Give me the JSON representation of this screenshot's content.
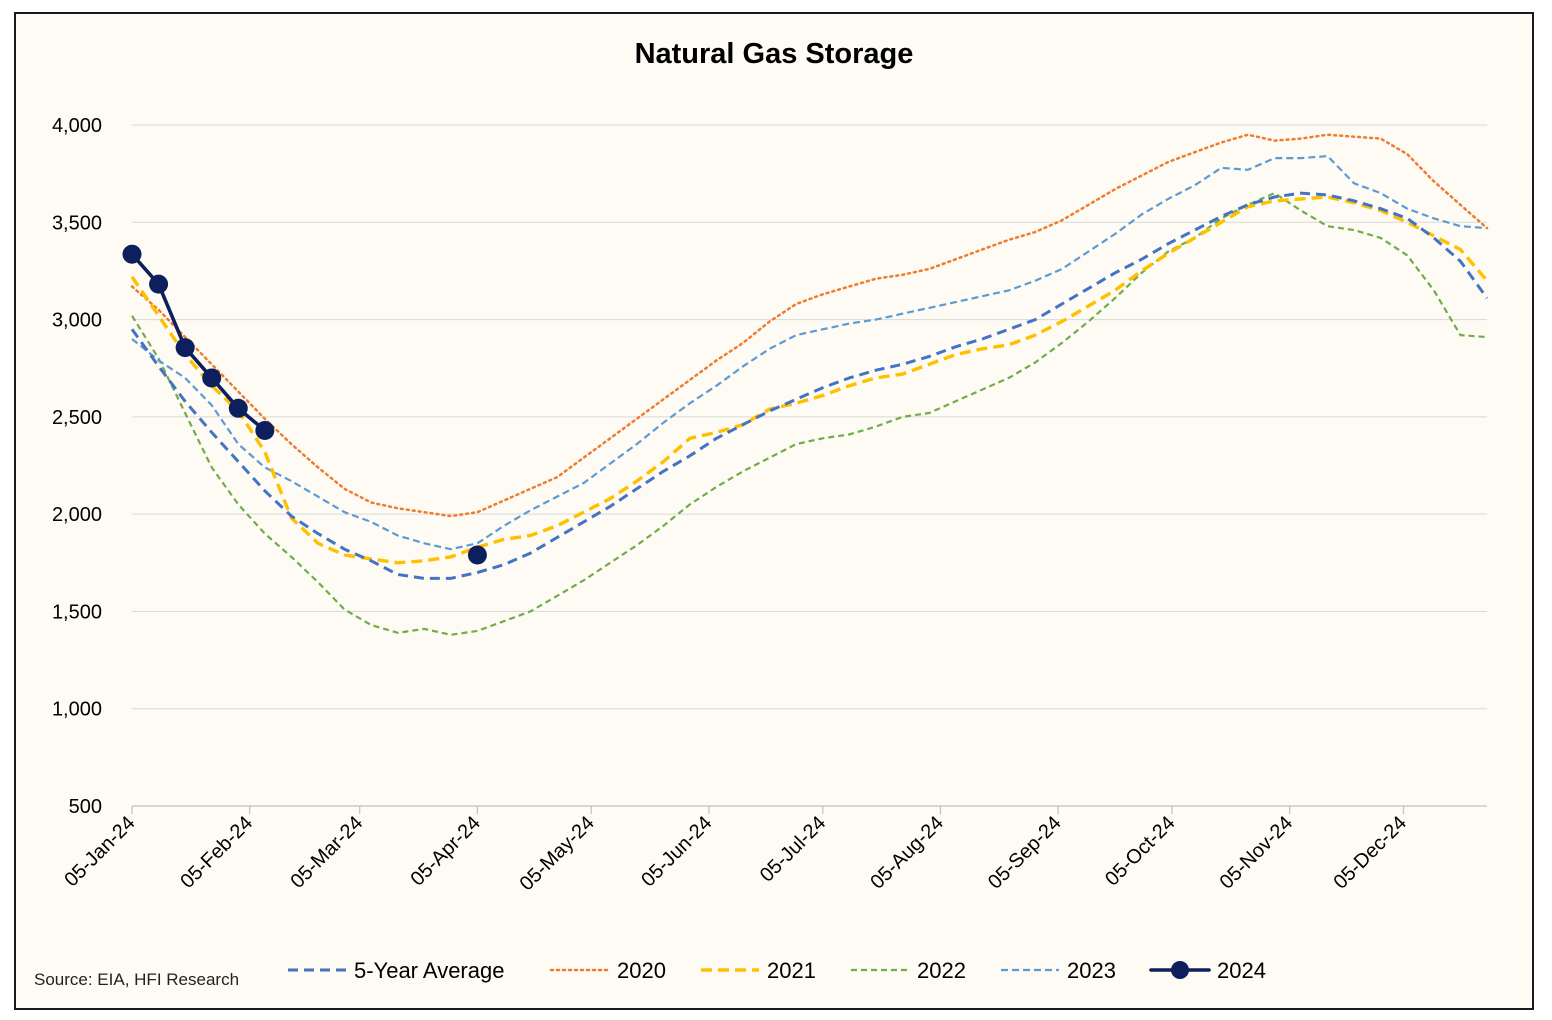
{
  "chart_data": {
    "type": "line",
    "title": "Natural Gas Storage",
    "source": "Source: EIA, HFI Research",
    "xlabel": "",
    "ylabel": "",
    "ylim": [
      500,
      4000
    ],
    "yticks": [
      500,
      1000,
      1500,
      2000,
      2500,
      3000,
      3500,
      4000
    ],
    "ytick_labels": [
      "500",
      "1,000",
      "1,500",
      "2,000",
      "2,500",
      "3,000",
      "3,500",
      "4,000"
    ],
    "x_domain": [
      "2024-01-05",
      "2024-12-27"
    ],
    "xticks": [
      "2024-01-05",
      "2024-02-05",
      "2024-03-05",
      "2024-04-05",
      "2024-05-05",
      "2024-06-05",
      "2024-07-05",
      "2024-08-05",
      "2024-09-05",
      "2024-10-05",
      "2024-11-05",
      "2024-12-05"
    ],
    "xtick_labels": [
      "05-Jan-24",
      "05-Feb-24",
      "05-Mar-24",
      "05-Apr-24",
      "05-May-24",
      "05-Jun-24",
      "05-Jul-24",
      "05-Aug-24",
      "05-Sep-24",
      "05-Oct-24",
      "05-Nov-24",
      "05-Dec-24"
    ],
    "grid": "horizontal",
    "legend_position": "bottom",
    "series": [
      {
        "name": "5-Year Average",
        "color": "#4472c4",
        "style": "dashed",
        "x": [
          "2024-01-05",
          "2024-01-12",
          "2024-01-19",
          "2024-01-26",
          "2024-02-02",
          "2024-02-09",
          "2024-02-16",
          "2024-02-23",
          "2024-03-01",
          "2024-03-08",
          "2024-03-15",
          "2024-03-22",
          "2024-03-29",
          "2024-04-05",
          "2024-04-12",
          "2024-04-19",
          "2024-04-26",
          "2024-05-03",
          "2024-05-10",
          "2024-05-17",
          "2024-05-24",
          "2024-05-31",
          "2024-06-07",
          "2024-06-14",
          "2024-06-21",
          "2024-06-28",
          "2024-07-05",
          "2024-07-12",
          "2024-07-19",
          "2024-07-26",
          "2024-08-02",
          "2024-08-09",
          "2024-08-16",
          "2024-08-23",
          "2024-08-30",
          "2024-09-06",
          "2024-09-13",
          "2024-09-20",
          "2024-09-27",
          "2024-10-04",
          "2024-10-11",
          "2024-10-18",
          "2024-10-25",
          "2024-11-01",
          "2024-11-08",
          "2024-11-15",
          "2024-11-22",
          "2024-11-29",
          "2024-12-06",
          "2024-12-13",
          "2024-12-20",
          "2024-12-27"
        ],
        "y": [
          2950,
          2760,
          2580,
          2420,
          2270,
          2120,
          1990,
          1900,
          1820,
          1760,
          1690,
          1670,
          1670,
          1700,
          1740,
          1800,
          1880,
          1960,
          2040,
          2130,
          2220,
          2300,
          2390,
          2460,
          2530,
          2590,
          2650,
          2700,
          2740,
          2770,
          2810,
          2860,
          2900,
          2950,
          3000,
          3080,
          3160,
          3240,
          3310,
          3390,
          3460,
          3530,
          3590,
          3630,
          3650,
          3640,
          3610,
          3570,
          3520,
          3420,
          3300,
          3110
        ]
      },
      {
        "name": "2020",
        "color": "#ed7d31",
        "style": "dotted",
        "x": [
          "2024-01-05",
          "2024-01-12",
          "2024-01-19",
          "2024-01-26",
          "2024-02-02",
          "2024-02-09",
          "2024-02-16",
          "2024-02-23",
          "2024-03-01",
          "2024-03-08",
          "2024-03-15",
          "2024-03-22",
          "2024-03-29",
          "2024-04-05",
          "2024-04-12",
          "2024-04-19",
          "2024-04-26",
          "2024-05-03",
          "2024-05-10",
          "2024-05-17",
          "2024-05-24",
          "2024-05-31",
          "2024-06-07",
          "2024-06-14",
          "2024-06-21",
          "2024-06-28",
          "2024-07-05",
          "2024-07-12",
          "2024-07-19",
          "2024-07-26",
          "2024-08-02",
          "2024-08-09",
          "2024-08-16",
          "2024-08-23",
          "2024-08-30",
          "2024-09-06",
          "2024-09-13",
          "2024-09-20",
          "2024-09-27",
          "2024-10-04",
          "2024-10-11",
          "2024-10-18",
          "2024-10-25",
          "2024-11-01",
          "2024-11-08",
          "2024-11-15",
          "2024-11-22",
          "2024-11-29",
          "2024-12-06",
          "2024-12-13",
          "2024-12-20",
          "2024-12-27"
        ],
        "y": [
          3170,
          3050,
          2910,
          2770,
          2630,
          2490,
          2360,
          2240,
          2130,
          2060,
          2030,
          2010,
          1990,
          2010,
          2070,
          2130,
          2190,
          2290,
          2390,
          2490,
          2590,
          2690,
          2790,
          2880,
          2990,
          3080,
          3130,
          3170,
          3210,
          3230,
          3260,
          3310,
          3360,
          3410,
          3450,
          3510,
          3590,
          3670,
          3740,
          3810,
          3860,
          3910,
          3950,
          3920,
          3930,
          3950,
          3940,
          3930,
          3850,
          3710,
          3590,
          3470
        ]
      },
      {
        "name": "2021",
        "color": "#ffc000",
        "style": "dashed",
        "x": [
          "2024-01-05",
          "2024-01-12",
          "2024-01-19",
          "2024-01-26",
          "2024-02-02",
          "2024-02-09",
          "2024-02-16",
          "2024-02-23",
          "2024-03-01",
          "2024-03-08",
          "2024-03-15",
          "2024-03-22",
          "2024-03-29",
          "2024-04-05",
          "2024-04-12",
          "2024-04-19",
          "2024-04-26",
          "2024-05-03",
          "2024-05-10",
          "2024-05-17",
          "2024-05-24",
          "2024-05-31",
          "2024-06-07",
          "2024-06-14",
          "2024-06-21",
          "2024-06-28",
          "2024-07-05",
          "2024-07-12",
          "2024-07-19",
          "2024-07-26",
          "2024-08-02",
          "2024-08-09",
          "2024-08-16",
          "2024-08-23",
          "2024-08-30",
          "2024-09-06",
          "2024-09-13",
          "2024-09-20",
          "2024-09-27",
          "2024-10-04",
          "2024-10-11",
          "2024-10-18",
          "2024-10-25",
          "2024-11-01",
          "2024-11-08",
          "2024-11-15",
          "2024-11-22",
          "2024-11-29",
          "2024-12-06",
          "2024-12-13",
          "2024-12-20",
          "2024-12-27"
        ],
        "y": [
          3220,
          3020,
          2820,
          2660,
          2530,
          2320,
          1980,
          1850,
          1790,
          1770,
          1750,
          1760,
          1780,
          1830,
          1870,
          1890,
          1940,
          2010,
          2080,
          2170,
          2270,
          2390,
          2420,
          2460,
          2540,
          2570,
          2610,
          2660,
          2700,
          2720,
          2770,
          2820,
          2850,
          2870,
          2920,
          2990,
          3070,
          3150,
          3250,
          3340,
          3420,
          3500,
          3580,
          3610,
          3620,
          3630,
          3600,
          3560,
          3500,
          3430,
          3360,
          3200
        ]
      },
      {
        "name": "2022",
        "color": "#70ad47",
        "style": "dashed",
        "x": [
          "2024-01-05",
          "2024-01-12",
          "2024-01-19",
          "2024-01-26",
          "2024-02-02",
          "2024-02-09",
          "2024-02-16",
          "2024-02-23",
          "2024-03-01",
          "2024-03-08",
          "2024-03-15",
          "2024-03-22",
          "2024-03-29",
          "2024-04-05",
          "2024-04-12",
          "2024-04-19",
          "2024-04-26",
          "2024-05-03",
          "2024-05-10",
          "2024-05-17",
          "2024-05-24",
          "2024-05-31",
          "2024-06-07",
          "2024-06-14",
          "2024-06-21",
          "2024-06-28",
          "2024-07-05",
          "2024-07-12",
          "2024-07-19",
          "2024-07-26",
          "2024-08-02",
          "2024-08-09",
          "2024-08-16",
          "2024-08-23",
          "2024-08-30",
          "2024-09-06",
          "2024-09-13",
          "2024-09-20",
          "2024-09-27",
          "2024-10-04",
          "2024-10-11",
          "2024-10-18",
          "2024-10-25",
          "2024-11-01",
          "2024-11-08",
          "2024-11-15",
          "2024-11-22",
          "2024-11-29",
          "2024-12-06",
          "2024-12-13",
          "2024-12-20",
          "2024-12-27"
        ],
        "y": [
          3020,
          2800,
          2520,
          2240,
          2050,
          1900,
          1780,
          1650,
          1510,
          1430,
          1390,
          1410,
          1380,
          1400,
          1450,
          1500,
          1580,
          1660,
          1750,
          1840,
          1940,
          2050,
          2140,
          2220,
          2290,
          2360,
          2390,
          2410,
          2450,
          2500,
          2520,
          2580,
          2640,
          2700,
          2780,
          2880,
          2990,
          3110,
          3240,
          3350,
          3420,
          3520,
          3590,
          3650,
          3560,
          3480,
          3460,
          3420,
          3330,
          3150,
          2920,
          2910
        ]
      },
      {
        "name": "2023",
        "color": "#5b9bd5",
        "style": "dashed-fine",
        "x": [
          "2024-01-05",
          "2024-01-12",
          "2024-01-19",
          "2024-01-26",
          "2024-02-02",
          "2024-02-09",
          "2024-02-16",
          "2024-02-23",
          "2024-03-01",
          "2024-03-08",
          "2024-03-15",
          "2024-03-22",
          "2024-03-29",
          "2024-04-05",
          "2024-04-12",
          "2024-04-19",
          "2024-04-26",
          "2024-05-03",
          "2024-05-10",
          "2024-05-17",
          "2024-05-24",
          "2024-05-31",
          "2024-06-07",
          "2024-06-14",
          "2024-06-21",
          "2024-06-28",
          "2024-07-05",
          "2024-07-12",
          "2024-07-19",
          "2024-07-26",
          "2024-08-02",
          "2024-08-09",
          "2024-08-16",
          "2024-08-23",
          "2024-08-30",
          "2024-09-06",
          "2024-09-13",
          "2024-09-20",
          "2024-09-27",
          "2024-10-04",
          "2024-10-11",
          "2024-10-18",
          "2024-10-25",
          "2024-11-01",
          "2024-11-08",
          "2024-11-15",
          "2024-11-22",
          "2024-11-29",
          "2024-12-06",
          "2024-12-13",
          "2024-12-20",
          "2024-12-27"
        ],
        "y": [
          2900,
          2790,
          2700,
          2560,
          2360,
          2240,
          2170,
          2090,
          2010,
          1960,
          1890,
          1850,
          1820,
          1850,
          1940,
          2020,
          2090,
          2160,
          2260,
          2360,
          2470,
          2570,
          2660,
          2760,
          2850,
          2920,
          2950,
          2980,
          3000,
          3030,
          3060,
          3090,
          3120,
          3150,
          3200,
          3260,
          3350,
          3440,
          3540,
          3620,
          3690,
          3780,
          3770,
          3830,
          3830,
          3840,
          3700,
          3650,
          3570,
          3520,
          3480,
          3470
        ]
      },
      {
        "name": "2024",
        "color": "#0d1f5c",
        "style": "solid-markers",
        "x": [
          "2024-01-05",
          "2024-01-12",
          "2024-01-19",
          "2024-01-26",
          "2024-02-02",
          "2024-02-09",
          "2024-04-05"
        ],
        "y": [
          3336,
          3182,
          2856,
          2700,
          2544,
          2430,
          1790
        ],
        "breaks_after_index": 5
      }
    ]
  }
}
